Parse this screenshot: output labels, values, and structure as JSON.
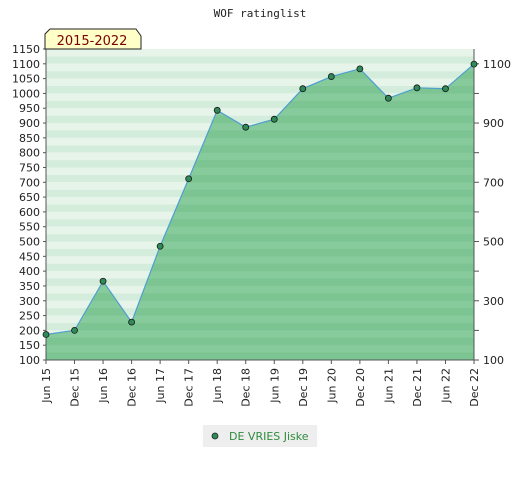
{
  "chart_data": {
    "type": "area",
    "title": "WOF ratinglist",
    "badge": "2015-2022",
    "x": [
      "Jun 15",
      "Dec 15",
      "Jun 16",
      "Dec 16",
      "Jun 17",
      "Dec 17",
      "Jun 18",
      "Dec 18",
      "Jun 19",
      "Dec 19",
      "Jun 20",
      "Dec 20",
      "Jun 21",
      "Dec 21",
      "Jun 22",
      "Dec 22"
    ],
    "series": [
      {
        "name": "DE VRIES Jiske",
        "values": [
          186,
          200,
          366,
          228,
          484,
          712,
          943,
          886,
          913,
          1016,
          1057,
          1083,
          984,
          1019,
          1016,
          1099
        ]
      }
    ],
    "ylim": [
      100,
      1150
    ],
    "left_ticks": [
      "100",
      "150",
      "200",
      "250",
      "300",
      "350",
      "400",
      "450",
      "500",
      "550",
      "600",
      "650",
      "700",
      "750",
      "800",
      "850",
      "900",
      "950",
      "1000",
      "1050",
      "1100",
      "1150"
    ],
    "right_ticks": [
      "100",
      "300",
      "500",
      "700",
      "900",
      "1100"
    ],
    "colors": {
      "line": "#4f9fcf",
      "marker": "#2e8b57",
      "area": "#7cc492",
      "band_dark": "#8fcfa3",
      "band_light": "#e6f4ea",
      "badge_fill": "#ffffc8",
      "badge_text": "#7a0000"
    },
    "grid": false,
    "legend": "bottom-center"
  }
}
